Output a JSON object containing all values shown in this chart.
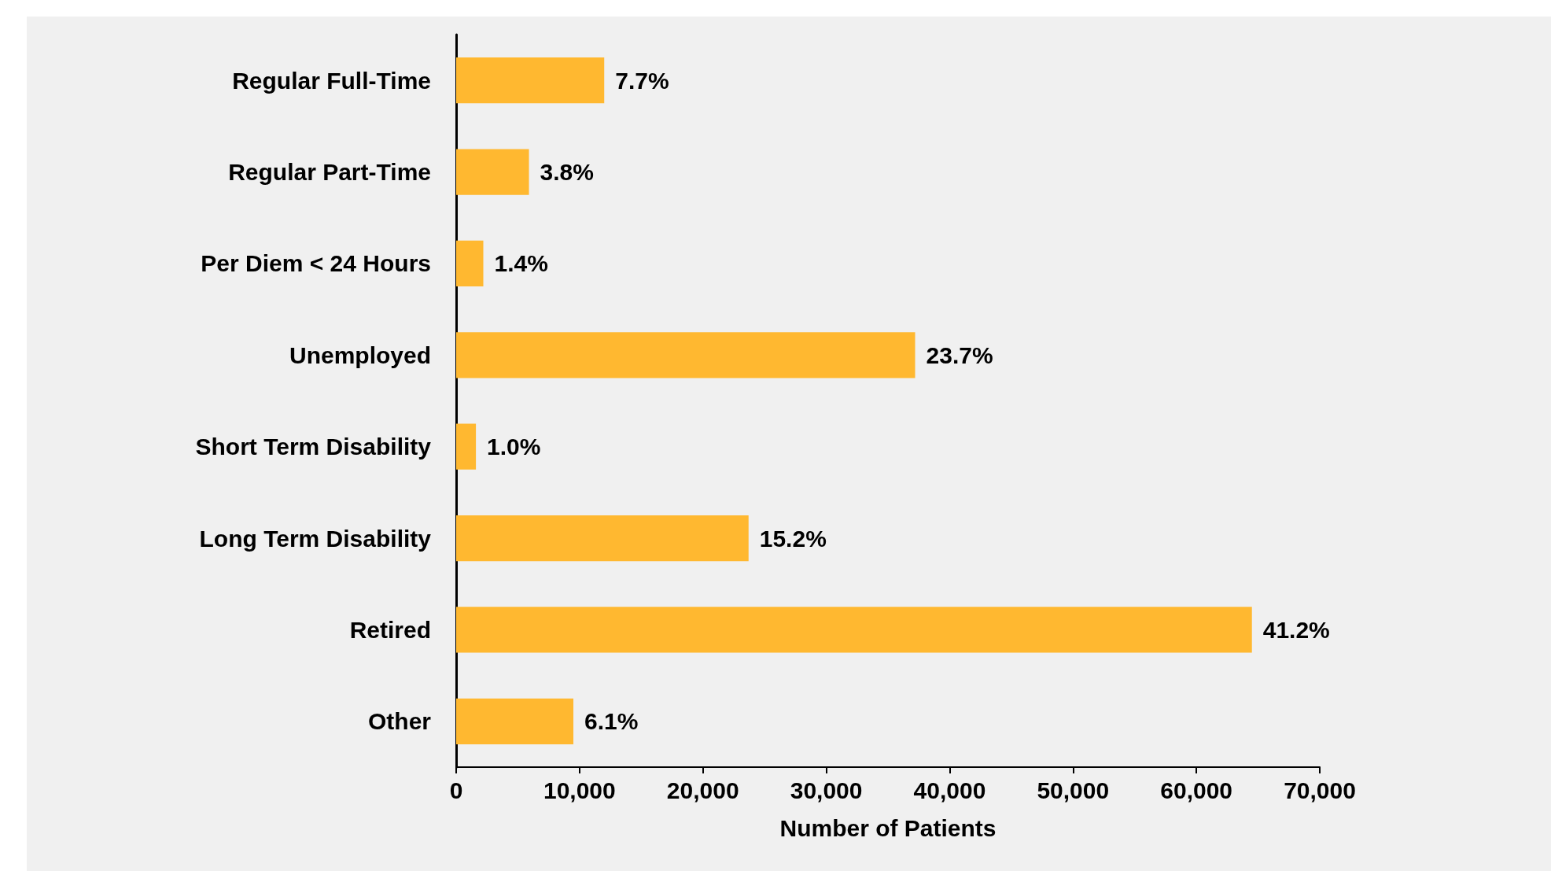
{
  "chart_data": {
    "type": "bar",
    "orientation": "horizontal",
    "xlabel": "Number of Patients",
    "categories": [
      "Regular Full-Time",
      "Regular Part-Time",
      "Per Diem < 24 Hours",
      "Unemployed",
      "Short Term Disability",
      "Long Term Disability",
      "Retired",
      "Other"
    ],
    "values": [
      12000,
      5900,
      2200,
      37200,
      1600,
      23700,
      64500,
      9500
    ],
    "annotations": [
      {
        "text": "7.7%",
        "x": 12000,
        "y": "Regular Full-Time"
      },
      {
        "text": "3.8%",
        "x": 5900,
        "y": "Regular Part-Time"
      },
      {
        "text": "1.4%",
        "x": 2200,
        "y": "Per Diem < 24 Hours"
      },
      {
        "text": "23.7%",
        "x": 37200,
        "y": "Unemployed"
      },
      {
        "text": "1.0%",
        "x": 1600,
        "y": "Short Term Disability"
      },
      {
        "text": "15.2%",
        "x": 23700,
        "y": "Long Term Disability"
      },
      {
        "text": "41.2%",
        "x": 64500,
        "y": "Retired"
      },
      {
        "text": "6.1%",
        "x": 9500,
        "y": "Other"
      }
    ],
    "color": "#ffb830",
    "xlim": [
      0,
      70000
    ],
    "xticks": [
      0,
      {
        "value": 10000,
        "label": "10,000"
      },
      {
        "value": 20000,
        "label": "20,000"
      },
      {
        "value": 30000,
        "label": "30,000"
      },
      {
        "value": 40000,
        "label": "40,000"
      },
      {
        "value": 50000,
        "label": "50,000"
      },
      {
        "value": 60000,
        "label": "60,000"
      },
      {
        "value": 70000,
        "label": "70,000"
      }
    ]
  }
}
